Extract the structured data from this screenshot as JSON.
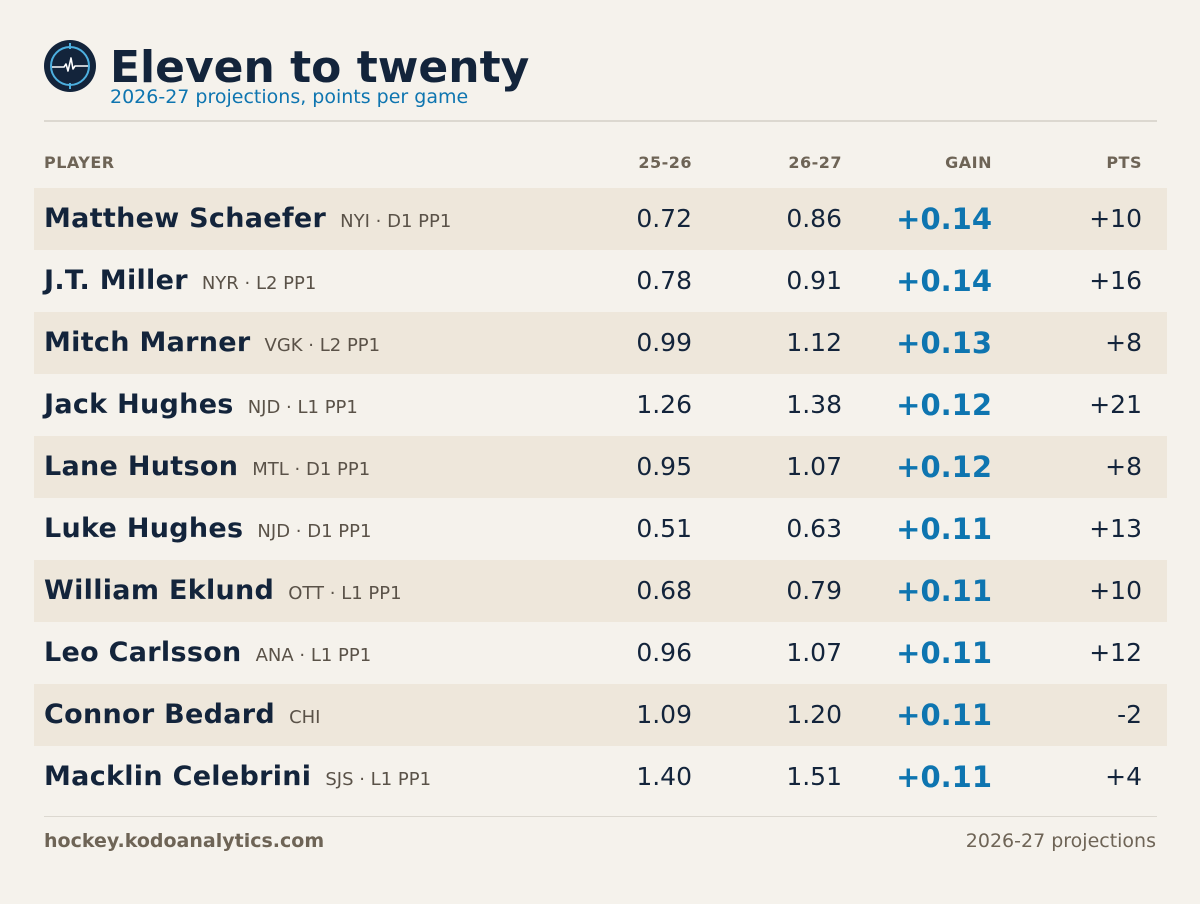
{
  "header": {
    "title": "Eleven to twenty",
    "subtitle": "2026-27 projections, points per game",
    "logo_icon": "hockey-puck-heartbeat-icon"
  },
  "colors": {
    "navy": "#13243b",
    "accent_blue": "#0e75b0",
    "muted": "#6e6456",
    "row_alt": "#eee7db",
    "background": "#f5f2ec"
  },
  "columns": {
    "player": "PLAYER",
    "prev": "25-26",
    "next": "26-27",
    "gain": "GAIN",
    "pts": "PTS"
  },
  "chart_data": {
    "type": "table",
    "title": "Eleven to twenty",
    "subtitle": "2026-27 projections, points per game",
    "columns": [
      "PLAYER",
      "25-26",
      "26-27",
      "GAIN",
      "PTS"
    ],
    "rows": [
      {
        "name": "Matthew Schaefer",
        "meta": "NYI · D1 PP1",
        "prev": "0.72",
        "next": "0.86",
        "gain": "+0.14",
        "pts": "+10"
      },
      {
        "name": "J.T. Miller",
        "meta": "NYR · L2 PP1",
        "prev": "0.78",
        "next": "0.91",
        "gain": "+0.14",
        "pts": "+16"
      },
      {
        "name": "Mitch Marner",
        "meta": "VGK · L2 PP1",
        "prev": "0.99",
        "next": "1.12",
        "gain": "+0.13",
        "pts": "+8"
      },
      {
        "name": "Jack Hughes",
        "meta": "NJD · L1 PP1",
        "prev": "1.26",
        "next": "1.38",
        "gain": "+0.12",
        "pts": "+21"
      },
      {
        "name": "Lane Hutson",
        "meta": "MTL · D1 PP1",
        "prev": "0.95",
        "next": "1.07",
        "gain": "+0.12",
        "pts": "+8"
      },
      {
        "name": "Luke Hughes",
        "meta": "NJD · D1 PP1",
        "prev": "0.51",
        "next": "0.63",
        "gain": "+0.11",
        "pts": "+13"
      },
      {
        "name": "William Eklund",
        "meta": "OTT · L1 PP1",
        "prev": "0.68",
        "next": "0.79",
        "gain": "+0.11",
        "pts": "+10"
      },
      {
        "name": "Leo Carlsson",
        "meta": "ANA · L1 PP1",
        "prev": "0.96",
        "next": "1.07",
        "gain": "+0.11",
        "pts": "+12"
      },
      {
        "name": "Connor Bedard",
        "meta": "CHI",
        "prev": "1.09",
        "next": "1.20",
        "gain": "+0.11",
        "pts": "-2"
      },
      {
        "name": "Macklin Celebrini",
        "meta": "SJS · L1 PP1",
        "prev": "1.40",
        "next": "1.51",
        "gain": "+0.11",
        "pts": "+4"
      }
    ]
  },
  "footer": {
    "site": "hockey.kodoanalytics.com",
    "note": "2026-27 projections"
  }
}
